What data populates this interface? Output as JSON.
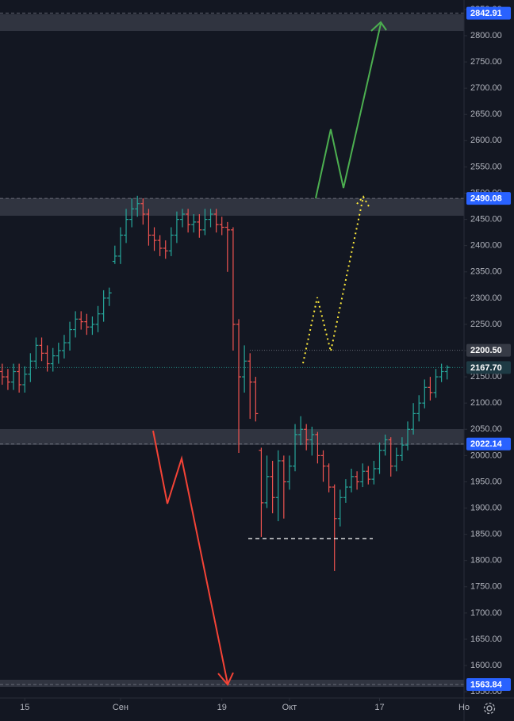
{
  "chart_data": {
    "type": "ohlc",
    "up_color": "#26a69a",
    "down_color": "#ef5350",
    "grid": false,
    "ylim": [
      1538.1,
      2868
    ],
    "yticks": [
      {
        "value": 1550,
        "label": "1550.00"
      },
      {
        "value": 1600,
        "label": "1600.00"
      },
      {
        "value": 1650,
        "label": "1650.00"
      },
      {
        "value": 1700,
        "label": "1700.00"
      },
      {
        "value": 1750,
        "label": "1750.00"
      },
      {
        "value": 1800,
        "label": "1800.00"
      },
      {
        "value": 1850,
        "label": "1850.00"
      },
      {
        "value": 1900,
        "label": "1900.00"
      },
      {
        "value": 1950,
        "label": "1950.00"
      },
      {
        "value": 2000,
        "label": "2000.00"
      },
      {
        "value": 2050,
        "label": "2050.00"
      },
      {
        "value": 2100,
        "label": "2100.00"
      },
      {
        "value": 2150,
        "label": "2150.00"
      },
      {
        "value": 2200,
        "label": "2200.00"
      },
      {
        "value": 2250,
        "label": "2250.00"
      },
      {
        "value": 2300,
        "label": "2300.00"
      },
      {
        "value": 2350,
        "label": "2350.00"
      },
      {
        "value": 2400,
        "label": "2400.00"
      },
      {
        "value": 2450,
        "label": "2450.00"
      },
      {
        "value": 2500,
        "label": "2500.00"
      },
      {
        "value": 2550,
        "label": "2550.00"
      },
      {
        "value": 2600,
        "label": "2600.00"
      },
      {
        "value": 2650,
        "label": "2650.00"
      },
      {
        "value": 2700,
        "label": "2700.00"
      },
      {
        "value": 2750,
        "label": "2750.00"
      },
      {
        "value": 2800,
        "label": "2800.00"
      },
      {
        "value": 2850,
        "label": "2850.00"
      }
    ],
    "xlim": [
      -4.4,
      78
    ],
    "xticks": [
      {
        "value": 0,
        "label": "15"
      },
      {
        "value": 17,
        "label": "Сен"
      },
      {
        "value": 35,
        "label": "19"
      },
      {
        "value": 47,
        "label": "Окт"
      },
      {
        "value": 63,
        "label": "17"
      },
      {
        "value": 78,
        "label": "Но"
      }
    ],
    "price_levels": [
      {
        "value": 2842.91,
        "color": "#2962ff"
      },
      {
        "value": 2490.08,
        "color": "#2962ff"
      },
      {
        "value": 2200.5,
        "label": "2200.50",
        "color": "#363a45"
      },
      {
        "value": 2167.7,
        "label": "2167.70",
        "color": "#1e3a44"
      },
      {
        "value": 2022.14,
        "color": "#2962ff"
      },
      {
        "value": 1563.84,
        "color": "#2962ff"
      }
    ],
    "x": [
      -4,
      -3,
      -2,
      -1,
      0,
      1,
      2,
      3,
      4,
      5,
      6,
      7,
      8,
      9,
      10,
      11,
      12,
      13,
      14,
      15,
      16,
      17,
      18,
      19,
      20,
      21,
      22,
      23,
      24,
      25,
      26,
      27,
      28,
      29,
      30,
      31,
      32,
      33,
      34,
      35,
      36,
      37,
      38,
      39,
      40,
      41,
      42,
      43,
      44,
      45,
      46,
      47,
      48,
      49,
      50,
      51,
      52,
      53,
      54,
      55,
      56,
      57,
      58,
      59,
      60,
      61,
      62,
      63,
      64,
      65,
      66,
      67,
      68,
      69,
      70,
      71,
      72,
      73,
      74,
      75
    ],
    "open": [
      2160,
      2150,
      2140,
      2160,
      2135,
      2155,
      2180,
      2210,
      2195,
      2175,
      2190,
      2200,
      2215,
      2240,
      2260,
      2255,
      2245,
      2250,
      2270,
      2300,
      2370,
      2380,
      2420,
      2450,
      2470,
      2480,
      2460,
      2420,
      2410,
      2395,
      2390,
      2420,
      2450,
      2460,
      2440,
      2445,
      2430,
      2450,
      2460,
      2440,
      2435,
      2430,
      2250,
      2150,
      2180,
      2140,
      2010,
      1910,
      1960,
      1920,
      1990,
      1950,
      1980,
      2040,
      2050,
      2030,
      2040,
      2000,
      1980,
      1940,
      1880,
      1920,
      1940,
      1960,
      1950,
      1970,
      1955,
      1975,
      2010,
      2030,
      1980,
      2000,
      2020,
      2050,
      2080,
      2100,
      2130,
      2120,
      2150,
      2160
    ],
    "high": [
      2175,
      2165,
      2175,
      2175,
      2170,
      2195,
      2225,
      2225,
      2210,
      2205,
      2215,
      2230,
      2255,
      2275,
      2275,
      2270,
      2265,
      2285,
      2315,
      2320,
      2400,
      2435,
      2470,
      2490,
      2495,
      2490,
      2470,
      2435,
      2420,
      2410,
      2435,
      2465,
      2470,
      2470,
      2460,
      2460,
      2470,
      2470,
      2470,
      2455,
      2445,
      2435,
      2260,
      2210,
      2195,
      2150,
      2015,
      2000,
      1990,
      2010,
      2000,
      2000,
      2060,
      2075,
      2060,
      2055,
      2045,
      2010,
      1985,
      1945,
      1935,
      1955,
      1975,
      1970,
      1985,
      1980,
      1990,
      2025,
      2040,
      2035,
      2015,
      2035,
      2065,
      2100,
      2115,
      2145,
      2150,
      2165,
      2175,
      2172
    ],
    "low": [
      2135,
      2125,
      2125,
      2120,
      2120,
      2140,
      2165,
      2180,
      2160,
      2160,
      2175,
      2185,
      2200,
      2225,
      2240,
      2230,
      2230,
      2235,
      2255,
      2285,
      2365,
      2365,
      2405,
      2435,
      2455,
      2440,
      2400,
      2390,
      2380,
      2375,
      2380,
      2405,
      2435,
      2425,
      2425,
      2415,
      2420,
      2435,
      2425,
      2420,
      2350,
      2200,
      2005,
      2120,
      2070,
      2065,
      1845,
      1900,
      1890,
      1875,
      1880,
      1935,
      1970,
      2020,
      2010,
      2000,
      1985,
      1950,
      1930,
      1780,
      1865,
      1910,
      1930,
      1935,
      1940,
      1945,
      1945,
      1965,
      2000,
      1960,
      1970,
      1990,
      2010,
      2040,
      2065,
      2090,
      2105,
      2110,
      2140,
      2145
    ],
    "close": [
      2150,
      2140,
      2160,
      2135,
      2155,
      2180,
      2210,
      2195,
      2175,
      2190,
      2200,
      2215,
      2240,
      2260,
      2255,
      2245,
      2250,
      2270,
      2300,
      2310,
      2380,
      2420,
      2450,
      2470,
      2480,
      2460,
      2420,
      2410,
      2395,
      2390,
      2420,
      2450,
      2460,
      2440,
      2445,
      2430,
      2450,
      2460,
      2440,
      2435,
      2430,
      2250,
      2150,
      2180,
      2140,
      2080,
      1910,
      1960,
      1920,
      1990,
      1950,
      1980,
      2040,
      2050,
      2030,
      2040,
      2000,
      1980,
      1940,
      1880,
      1920,
      1940,
      1960,
      1950,
      1970,
      1955,
      1975,
      2010,
      2030,
      1980,
      2000,
      2020,
      2050,
      2080,
      2100,
      2130,
      2120,
      2150,
      2160,
      2168
    ]
  }
}
